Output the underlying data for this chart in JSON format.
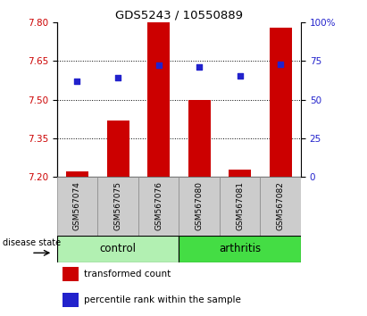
{
  "title": "GDS5243 / 10550889",
  "samples": [
    "GSM567074",
    "GSM567075",
    "GSM567076",
    "GSM567080",
    "GSM567081",
    "GSM567082"
  ],
  "bar_values": [
    7.22,
    7.42,
    7.8,
    7.5,
    7.23,
    7.78
  ],
  "dot_values": [
    7.57,
    7.585,
    7.632,
    7.625,
    7.59,
    7.638
  ],
  "ymin": 7.2,
  "ymax": 7.8,
  "yticks_left": [
    7.2,
    7.35,
    7.5,
    7.65,
    7.8
  ],
  "yticks_right": [
    0,
    25,
    50,
    75,
    100
  ],
  "bar_color": "#cc0000",
  "dot_color": "#2222cc",
  "bar_width": 0.55,
  "control_color": "#b2f0b2",
  "arthritis_color": "#44dd44",
  "tick_label_color_left": "#cc0000",
  "tick_label_color_right": "#2222cc",
  "group_label": "disease state",
  "legend_bar_label": "transformed count",
  "legend_dot_label": "percentile rank within the sample",
  "grid_yticks": [
    7.35,
    7.5,
    7.65
  ],
  "box_bg": "#cccccc",
  "n_control": 3,
  "n_arthritis": 3
}
